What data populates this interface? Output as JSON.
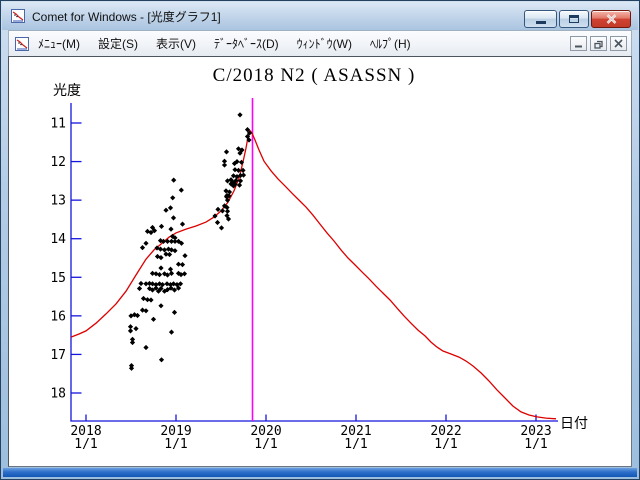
{
  "window": {
    "title": "Comet for Windows - [光度グラフ1]",
    "icons": {
      "app_icon": "light-curve-icon",
      "minimize": "minimize-icon",
      "maximize": "maximize-icon",
      "close": "close-icon"
    }
  },
  "menu": {
    "items": [
      {
        "label": "ﾒﾆｭｰ(M)"
      },
      {
        "label": "設定(S)"
      },
      {
        "label": "表示(V)"
      },
      {
        "label": "ﾃﾞｰﾀﾍﾞｰｽ(D)"
      },
      {
        "label": "ｳｨﾝﾄﾞｳ(W)"
      },
      {
        "label": "ﾍﾙﾌﾟ(H)"
      }
    ],
    "mdi_buttons": [
      "minimize",
      "restore",
      "close"
    ]
  },
  "chart_data": {
    "type": "scatter",
    "title": "C/2018 N2 ( ASASSN )",
    "xlabel": "日付",
    "ylabel": "光度",
    "x_ticks": [
      {
        "label": "2018",
        "sublabel": "1/1",
        "year": 2018
      },
      {
        "label": "2019",
        "sublabel": "1/1",
        "year": 2019
      },
      {
        "label": "2020",
        "sublabel": "1/1",
        "year": 2020
      },
      {
        "label": "2021",
        "sublabel": "1/1",
        "year": 2021
      },
      {
        "label": "2022",
        "sublabel": "1/1",
        "year": 2022
      },
      {
        "label": "2023",
        "sublabel": "1/1",
        "year": 2023
      }
    ],
    "y_ticks": [
      11,
      12,
      13,
      14,
      15,
      16,
      17,
      18
    ],
    "xlim": [
      2017.83,
      2023.3
    ],
    "ylim": [
      18.7,
      10.7
    ],
    "y_axis_inverted": true,
    "grid": false,
    "perihelion_line_x": 2019.85,
    "colors": {
      "axis": "#1515dd",
      "curve": "#dd0000",
      "points": "#000000",
      "perihelion": "#ff00ff",
      "background": "#ffffff"
    },
    "series": [
      {
        "name": "observations",
        "type": "scatter",
        "points": [
          [
            2019.711,
            10.79
          ],
          [
            2019.794,
            11.17
          ],
          [
            2019.817,
            11.26
          ],
          [
            2019.794,
            11.35
          ],
          [
            2019.811,
            11.44
          ],
          [
            2019.694,
            11.67
          ],
          [
            2019.733,
            11.7
          ],
          [
            2019.711,
            11.78
          ],
          [
            2019.561,
            11.75
          ],
          [
            2019.539,
            11.99
          ],
          [
            2019.678,
            12.0
          ],
          [
            2019.728,
            12.02
          ],
          [
            2019.539,
            12.09
          ],
          [
            2019.65,
            12.05
          ],
          [
            2019.656,
            12.21
          ],
          [
            2019.694,
            12.23
          ],
          [
            2019.744,
            12.23
          ],
          [
            2019.75,
            12.35
          ],
          [
            2019.717,
            12.36
          ],
          [
            2019.639,
            12.37
          ],
          [
            2019.678,
            12.39
          ],
          [
            2019.611,
            12.47
          ],
          [
            2019.667,
            12.49
          ],
          [
            2019.717,
            12.5
          ],
          [
            2019.572,
            12.5
          ],
          [
            2019.611,
            12.58
          ],
          [
            2019.656,
            12.59
          ],
          [
            2019.706,
            12.61
          ],
          [
            2019.639,
            12.63
          ],
          [
            2019.628,
            12.53
          ],
          [
            2019.556,
            12.76
          ],
          [
            2019.594,
            12.79
          ],
          [
            2019.567,
            12.88
          ],
          [
            2019.561,
            12.91
          ],
          [
            2019.589,
            12.89
          ],
          [
            2019.572,
            13.0
          ],
          [
            2019.539,
            13.15
          ],
          [
            2019.467,
            13.24
          ],
          [
            2019.567,
            13.19
          ],
          [
            2019.572,
            13.29
          ],
          [
            2019.517,
            13.28
          ],
          [
            2019.567,
            13.4
          ],
          [
            2019.583,
            13.49
          ],
          [
            2019.433,
            13.41
          ],
          [
            2019.461,
            13.58
          ],
          [
            2019.506,
            13.72
          ],
          [
            2018.974,
            12.48
          ],
          [
            2019.059,
            12.74
          ],
          [
            2018.963,
            12.94
          ],
          [
            2018.889,
            13.26
          ],
          [
            2018.939,
            13.2
          ],
          [
            2018.972,
            13.46
          ],
          [
            2019.072,
            13.62
          ],
          [
            2018.839,
            13.68
          ],
          [
            2018.739,
            13.71
          ],
          [
            2018.944,
            13.75
          ],
          [
            2018.683,
            13.81
          ],
          [
            2018.722,
            13.84
          ],
          [
            2018.761,
            13.79
          ],
          [
            2018.961,
            13.94
          ],
          [
            2018.989,
            13.98
          ],
          [
            2018.828,
            14.05
          ],
          [
            2018.861,
            14.07
          ],
          [
            2018.906,
            14.07
          ],
          [
            2018.95,
            14.07
          ],
          [
            2018.989,
            14.07
          ],
          [
            2019.028,
            14.07
          ],
          [
            2018.667,
            14.12
          ],
          [
            2019.061,
            14.12
          ],
          [
            2018.628,
            14.23
          ],
          [
            2018.789,
            14.24
          ],
          [
            2018.828,
            14.27
          ],
          [
            2018.872,
            14.29
          ],
          [
            2018.917,
            14.27
          ],
          [
            2018.95,
            14.29
          ],
          [
            2018.989,
            14.31
          ],
          [
            2018.889,
            14.4
          ],
          [
            2018.928,
            14.41
          ],
          [
            2019.1,
            14.44
          ],
          [
            2018.794,
            14.46
          ],
          [
            2018.833,
            14.49
          ],
          [
            2019.028,
            14.66
          ],
          [
            2019.072,
            14.67
          ],
          [
            2018.833,
            14.76
          ],
          [
            2018.939,
            14.79
          ],
          [
            2018.739,
            14.9
          ],
          [
            2018.778,
            14.91
          ],
          [
            2018.817,
            14.93
          ],
          [
            2018.872,
            14.91
          ],
          [
            2018.906,
            14.94
          ],
          [
            2018.95,
            14.9
          ],
          [
            2019.028,
            14.9
          ],
          [
            2019.056,
            14.93
          ],
          [
            2019.094,
            14.91
          ],
          [
            2018.611,
            15.16
          ],
          [
            2018.667,
            15.17
          ],
          [
            2018.706,
            15.16
          ],
          [
            2018.739,
            15.17
          ],
          [
            2018.778,
            15.19
          ],
          [
            2018.817,
            15.17
          ],
          [
            2018.85,
            15.19
          ],
          [
            2018.9,
            15.17
          ],
          [
            2018.939,
            15.19
          ],
          [
            2018.972,
            15.17
          ],
          [
            2019.011,
            15.19
          ],
          [
            2019.05,
            15.17
          ],
          [
            2018.594,
            15.29
          ],
          [
            2018.706,
            15.29
          ],
          [
            2018.739,
            15.33
          ],
          [
            2018.778,
            15.28
          ],
          [
            2018.806,
            15.36
          ],
          [
            2018.833,
            15.29
          ],
          [
            2018.872,
            15.36
          ],
          [
            2018.906,
            15.32
          ],
          [
            2018.944,
            15.28
          ],
          [
            2018.983,
            15.33
          ],
          [
            2019.028,
            15.28
          ],
          [
            2018.639,
            15.55
          ],
          [
            2018.683,
            15.58
          ],
          [
            2018.722,
            15.59
          ],
          [
            2018.833,
            15.74
          ],
          [
            2018.628,
            15.85
          ],
          [
            2018.667,
            15.87
          ],
          [
            2018.539,
            15.97
          ],
          [
            2018.572,
            15.99
          ],
          [
            2018.5,
            16.0
          ],
          [
            2018.983,
            15.91
          ],
          [
            2018.75,
            16.09
          ],
          [
            2018.494,
            16.28
          ],
          [
            2018.556,
            16.33
          ],
          [
            2018.494,
            16.39
          ],
          [
            2018.95,
            16.42
          ],
          [
            2018.517,
            16.61
          ],
          [
            2018.517,
            16.69
          ],
          [
            2018.667,
            16.82
          ],
          [
            2018.839,
            17.14
          ],
          [
            2018.506,
            17.29
          ],
          [
            2018.506,
            17.36
          ]
        ]
      },
      {
        "name": "predicted-light-curve",
        "type": "line",
        "points": [
          [
            2017.833,
            16.55
          ],
          [
            2017.922,
            16.47
          ],
          [
            2018.0,
            16.39
          ],
          [
            2018.111,
            16.19
          ],
          [
            2018.222,
            15.95
          ],
          [
            2018.333,
            15.69
          ],
          [
            2018.444,
            15.36
          ],
          [
            2018.556,
            14.94
          ],
          [
            2018.667,
            14.53
          ],
          [
            2018.756,
            14.29
          ],
          [
            2018.833,
            14.14
          ],
          [
            2018.922,
            13.96
          ],
          [
            2019.0,
            13.85
          ],
          [
            2019.111,
            13.75
          ],
          [
            2019.222,
            13.67
          ],
          [
            2019.333,
            13.57
          ],
          [
            2019.422,
            13.44
          ],
          [
            2019.5,
            13.28
          ],
          [
            2019.578,
            13.05
          ],
          [
            2019.644,
            12.76
          ],
          [
            2019.7,
            12.43
          ],
          [
            2019.744,
            12.01
          ],
          [
            2019.778,
            11.65
          ],
          [
            2019.8,
            11.36
          ],
          [
            2019.822,
            11.2
          ],
          [
            2019.844,
            11.26
          ],
          [
            2019.878,
            11.44
          ],
          [
            2019.922,
            11.7
          ],
          [
            2019.978,
            11.99
          ],
          [
            2020.056,
            12.24
          ],
          [
            2020.133,
            12.45
          ],
          [
            2020.211,
            12.63
          ],
          [
            2020.289,
            12.82
          ],
          [
            2020.367,
            13.0
          ],
          [
            2020.444,
            13.18
          ],
          [
            2020.522,
            13.39
          ],
          [
            2020.6,
            13.62
          ],
          [
            2020.678,
            13.85
          ],
          [
            2020.756,
            14.06
          ],
          [
            2020.833,
            14.29
          ],
          [
            2020.911,
            14.5
          ],
          [
            2020.989,
            14.68
          ],
          [
            2021.067,
            14.86
          ],
          [
            2021.144,
            15.04
          ],
          [
            2021.222,
            15.23
          ],
          [
            2021.3,
            15.41
          ],
          [
            2021.378,
            15.59
          ],
          [
            2021.456,
            15.8
          ],
          [
            2021.533,
            16.0
          ],
          [
            2021.611,
            16.19
          ],
          [
            2021.689,
            16.37
          ],
          [
            2021.767,
            16.52
          ],
          [
            2021.833,
            16.68
          ],
          [
            2021.9,
            16.81
          ],
          [
            2021.967,
            16.91
          ],
          [
            2022.056,
            16.99
          ],
          [
            2022.144,
            17.07
          ],
          [
            2022.222,
            17.17
          ],
          [
            2022.3,
            17.3
          ],
          [
            2022.389,
            17.48
          ],
          [
            2022.478,
            17.69
          ],
          [
            2022.567,
            17.92
          ],
          [
            2022.656,
            18.13
          ],
          [
            2022.744,
            18.34
          ],
          [
            2022.833,
            18.49
          ],
          [
            2022.922,
            18.57
          ],
          [
            2023.011,
            18.62
          ],
          [
            2023.111,
            18.65
          ],
          [
            2023.222,
            18.67
          ]
        ]
      }
    ]
  }
}
